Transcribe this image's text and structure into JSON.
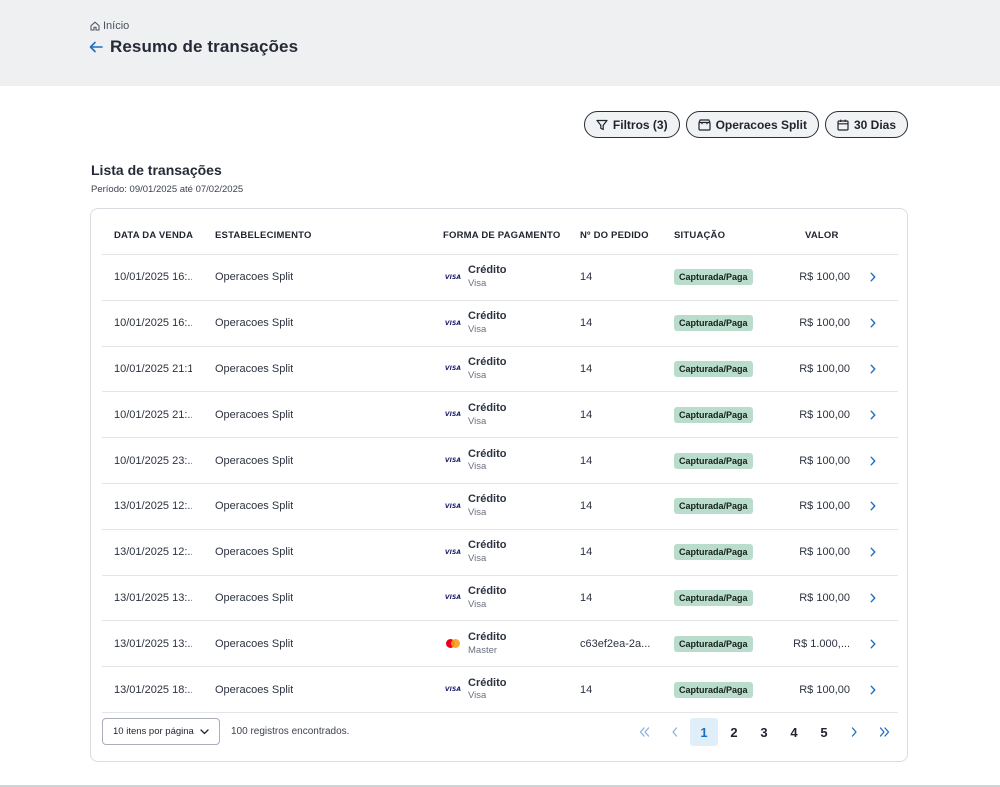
{
  "breadcrumb": {
    "home_label": "Início"
  },
  "header": {
    "title": "Resumo de transações"
  },
  "toolbar": {
    "filters_label": "Filtros (3)",
    "store_label": "Operacoes Split",
    "period_label": "30 Dias"
  },
  "list": {
    "title": "Lista de transações",
    "period": "Período: 09/01/2025 até 07/02/2025"
  },
  "table": {
    "columns": {
      "date": "DATA DA VENDA",
      "establishment": "ESTABELECIMENTO",
      "payment": "FORMA DE PAGAMENTO",
      "order": "Nº DO PEDIDO",
      "status": "SITUAÇÃO",
      "value": "VALOR"
    },
    "rows": [
      {
        "date": "10/01/2025 16:...",
        "establishment": "Operacoes Split",
        "brand_icon": "visa",
        "payment": "Crédito",
        "brand": "Visa",
        "order": "14",
        "status": "Capturada/Paga",
        "value": "R$ 100,00"
      },
      {
        "date": "10/01/2025 16:...",
        "establishment": "Operacoes Split",
        "brand_icon": "visa",
        "payment": "Crédito",
        "brand": "Visa",
        "order": "14",
        "status": "Capturada/Paga",
        "value": "R$ 100,00"
      },
      {
        "date": "10/01/2025 21:1...",
        "establishment": "Operacoes Split",
        "brand_icon": "visa",
        "payment": "Crédito",
        "brand": "Visa",
        "order": "14",
        "status": "Capturada/Paga",
        "value": "R$ 100,00"
      },
      {
        "date": "10/01/2025 21:...",
        "establishment": "Operacoes Split",
        "brand_icon": "visa",
        "payment": "Crédito",
        "brand": "Visa",
        "order": "14",
        "status": "Capturada/Paga",
        "value": "R$ 100,00"
      },
      {
        "date": "10/01/2025 23:...",
        "establishment": "Operacoes Split",
        "brand_icon": "visa",
        "payment": "Crédito",
        "brand": "Visa",
        "order": "14",
        "status": "Capturada/Paga",
        "value": "R$ 100,00"
      },
      {
        "date": "13/01/2025 12:...",
        "establishment": "Operacoes Split",
        "brand_icon": "visa",
        "payment": "Crédito",
        "brand": "Visa",
        "order": "14",
        "status": "Capturada/Paga",
        "value": "R$ 100,00"
      },
      {
        "date": "13/01/2025 12:...",
        "establishment": "Operacoes Split",
        "brand_icon": "visa",
        "payment": "Crédito",
        "brand": "Visa",
        "order": "14",
        "status": "Capturada/Paga",
        "value": "R$ 100,00"
      },
      {
        "date": "13/01/2025 13:...",
        "establishment": "Operacoes Split",
        "brand_icon": "visa",
        "payment": "Crédito",
        "brand": "Visa",
        "order": "14",
        "status": "Capturada/Paga",
        "value": "R$ 100,00"
      },
      {
        "date": "13/01/2025 13:...",
        "establishment": "Operacoes Split",
        "brand_icon": "mastercard",
        "payment": "Crédito",
        "brand": "Master",
        "order": "c63ef2ea-2a...",
        "status": "Capturada/Paga",
        "value": "R$ 1.000,..."
      },
      {
        "date": "13/01/2025 18:...",
        "establishment": "Operacoes Split",
        "brand_icon": "visa",
        "payment": "Crédito",
        "brand": "Visa",
        "order": "14",
        "status": "Capturada/Paga",
        "value": "R$ 100,00"
      }
    ]
  },
  "footer": {
    "per_page": "10 itens por página",
    "records": "100 registros encontrados.",
    "pages": [
      "1",
      "2",
      "3",
      "4",
      "5"
    ],
    "current_page": "1"
  },
  "colors": {
    "accent": "#1b6fc0",
    "status_badge": "#b9dccc",
    "header_bg": "#eef0f2"
  },
  "icons": {
    "visa_text": "VISA"
  }
}
